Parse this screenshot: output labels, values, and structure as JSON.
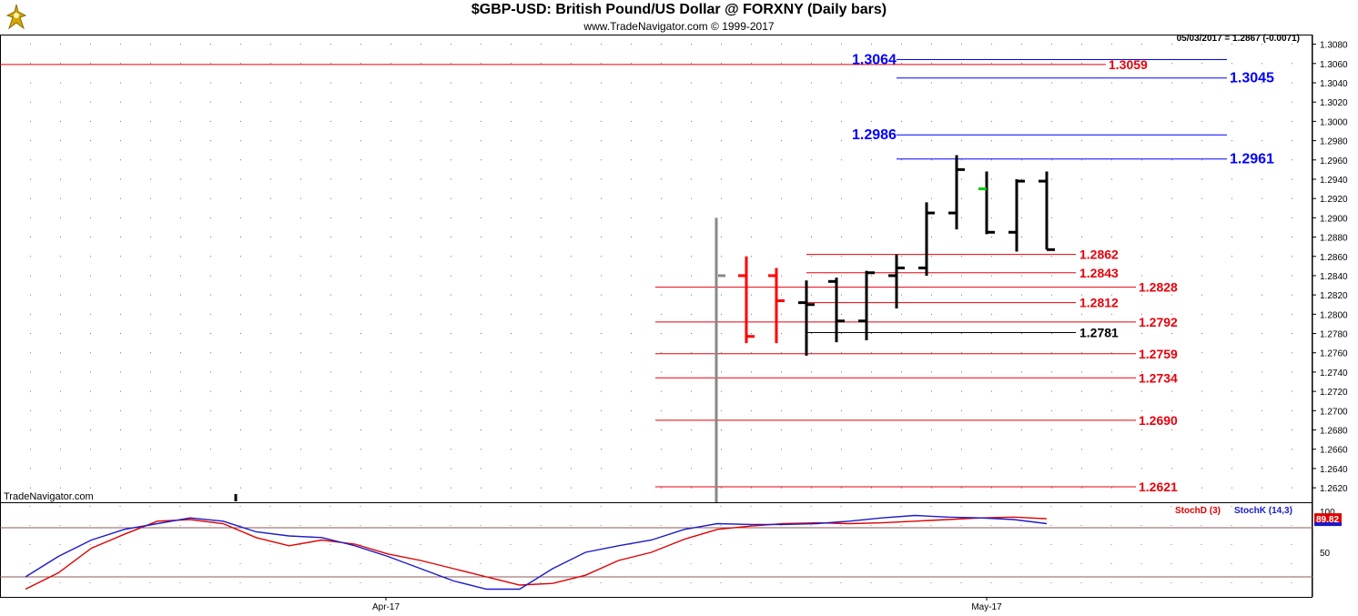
{
  "header": {
    "title": "$GBP-USD:  British Pound/US Dollar @ FORXNY  (Daily bars)",
    "subtitle": "www.TradeNavigator.com © 1999-2017",
    "readout": "05/03/2017 = 1.2867 (-0.0071)",
    "watermark": "TradeNavigator.com"
  },
  "colors": {
    "up_bar": "#000000",
    "down_bar": "#ff0000",
    "red_level": "#e8000b",
    "blue_level": "#0000ff",
    "stoch_d": "#e00000",
    "stoch_k": "#1a1acc",
    "highlight_tick": "#00cc00"
  },
  "chart_data": [
    {
      "type": "ohlc",
      "title": "$GBP-USD:  British Pound/US Dollar @ FORXNY  (Daily bars)",
      "ylim": [
        1.2605,
        1.309
      ],
      "y_ticks": [
        "1.3080",
        "1.3060",
        "1.3040",
        "1.3020",
        "1.3000",
        "1.2980",
        "1.2960",
        "1.2940",
        "1.2920",
        "1.2900",
        "1.2880",
        "1.2860",
        "1.2840",
        "1.2820",
        "1.2800",
        "1.2780",
        "1.2760",
        "1.2740",
        "1.2720",
        "1.2700",
        "1.2680",
        "1.2660",
        "1.2640",
        "1.2620"
      ],
      "x_ticks": [
        "Apr-17",
        "May-17"
      ],
      "bars": [
        {
          "o": 1.284,
          "h": 1.286,
          "l": 1.277,
          "c": 1.2777,
          "dir": "down"
        },
        {
          "o": 1.284,
          "h": 1.2848,
          "l": 1.277,
          "c": 1.2814,
          "dir": "down"
        },
        {
          "o": 1.2812,
          "h": 1.2835,
          "l": 1.2757,
          "c": 1.281,
          "dir": "up"
        },
        {
          "o": 1.2834,
          "h": 1.2838,
          "l": 1.2771,
          "c": 1.2793,
          "dir": "up"
        },
        {
          "o": 1.2793,
          "h": 1.2845,
          "l": 1.2773,
          "c": 1.2843,
          "dir": "up"
        },
        {
          "o": 1.284,
          "h": 1.2862,
          "l": 1.2806,
          "c": 1.2848,
          "dir": "up"
        },
        {
          "o": 1.2848,
          "h": 1.2916,
          "l": 1.284,
          "c": 1.2905,
          "dir": "up"
        },
        {
          "o": 1.2905,
          "h": 1.2965,
          "l": 1.2888,
          "c": 1.295,
          "dir": "up"
        },
        {
          "o": 1.293,
          "h": 1.2948,
          "l": 1.2883,
          "c": 1.2885,
          "dir": "up",
          "open_highlight": true
        },
        {
          "o": 1.2885,
          "h": 1.294,
          "l": 1.2865,
          "c": 1.2938,
          "dir": "up"
        },
        {
          "o": 1.2938,
          "h": 1.2948,
          "l": 1.2867,
          "c": 1.2867,
          "dir": "up"
        }
      ],
      "pre_bar_marker": {
        "high": 1.29,
        "low": 1.2615,
        "tick": 1.284
      },
      "levels": [
        {
          "value": 1.3064,
          "label": "1.3064",
          "color": "blue",
          "label_side": "left"
        },
        {
          "value": 1.3059,
          "label": "1.3059",
          "color": "red",
          "label_side": "mid"
        },
        {
          "value": 1.3045,
          "label": "1.3045",
          "color": "blue",
          "label_side": "right"
        },
        {
          "value": 1.2986,
          "label": "1.2986",
          "color": "blue",
          "label_side": "left"
        },
        {
          "value": 1.2961,
          "label": "1.2961",
          "color": "blue",
          "label_side": "right"
        },
        {
          "value": 1.2862,
          "label": "1.2862",
          "color": "red",
          "label_side": "mid"
        },
        {
          "value": 1.2843,
          "label": "1.2843",
          "color": "red",
          "label_side": "mid"
        },
        {
          "value": 1.2828,
          "label": "1.2828",
          "color": "red",
          "label_side": "far"
        },
        {
          "value": 1.2812,
          "label": "1.2812",
          "color": "red",
          "label_side": "mid"
        },
        {
          "value": 1.2792,
          "label": "1.2792",
          "color": "red",
          "label_side": "far"
        },
        {
          "value": 1.2781,
          "label": "1.2781",
          "color": "black",
          "label_side": "mid"
        },
        {
          "value": 1.2759,
          "label": "1.2759",
          "color": "red",
          "label_side": "far"
        },
        {
          "value": 1.2734,
          "label": "1.2734",
          "color": "red",
          "label_side": "far"
        },
        {
          "value": 1.269,
          "label": "1.2690",
          "color": "red",
          "label_side": "far"
        },
        {
          "value": 1.2621,
          "label": "1.2621",
          "color": "red",
          "label_side": "far"
        }
      ],
      "long_red_line": 1.3059
    },
    {
      "type": "line",
      "ylim": [
        0,
        100
      ],
      "y_ticks": [
        "100",
        "50"
      ],
      "reference_lines": [
        80,
        20
      ],
      "legend": [
        "StochD (3)",
        "StochK (14,3)"
      ],
      "last_value_label": "89.82",
      "series": [
        {
          "name": "StochD (3)",
          "color": "red",
          "values": [
            5,
            25,
            55,
            72,
            88,
            90,
            85,
            68,
            58,
            65,
            60,
            48,
            40,
            30,
            20,
            10,
            12,
            22,
            40,
            50,
            66,
            78,
            82,
            85,
            86,
            85,
            86,
            88,
            90,
            92,
            93,
            91
          ]
        },
        {
          "name": "StochK (14,3)",
          "color": "blue",
          "values": [
            20,
            45,
            65,
            78,
            85,
            92,
            88,
            75,
            70,
            68,
            58,
            45,
            30,
            15,
            5,
            5,
            30,
            50,
            58,
            65,
            78,
            85,
            84,
            84,
            85,
            88,
            92,
            95,
            93,
            92,
            90,
            85
          ]
        }
      ]
    }
  ]
}
